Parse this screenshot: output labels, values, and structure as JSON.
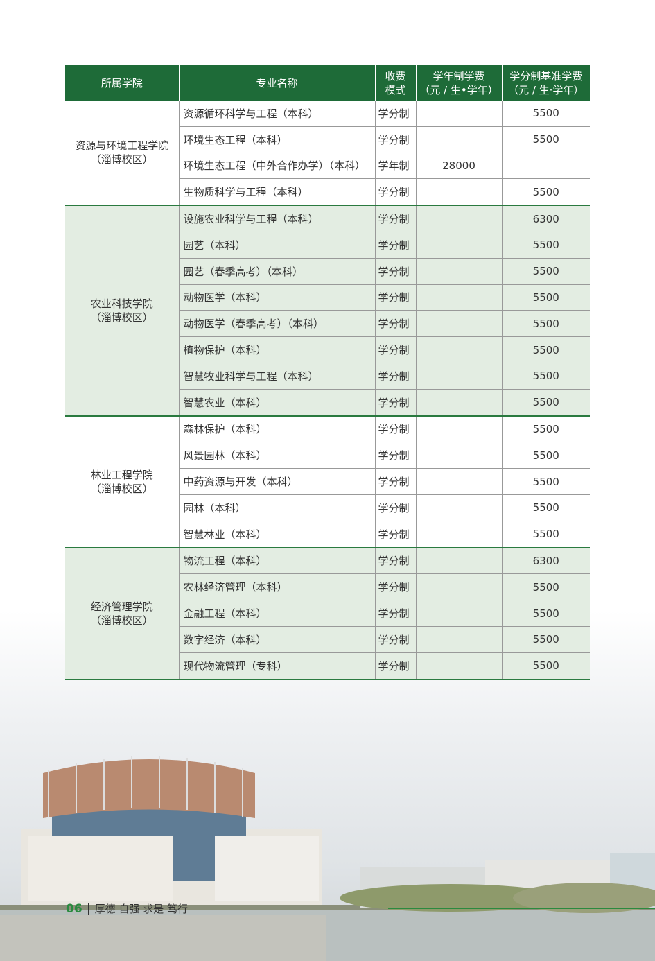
{
  "table": {
    "headers": [
      "所属学院",
      "专业名称",
      "收费\n模式",
      "学年制学费\n（元 / 生•学年）",
      "学分制基准学费\n（元 / 生·学年）"
    ],
    "groups": [
      {
        "college": "资源与环境工程学院\n（淄博校区）",
        "rows": [
          [
            "资源循环科学与工程（本科）",
            "学分制",
            "",
            "5500"
          ],
          [
            "环境生态工程（本科）",
            "学分制",
            "",
            "5500"
          ],
          [
            "环境生态工程（中外合作办学）（本科）",
            "学年制",
            "28000",
            ""
          ],
          [
            "生物质科学与工程（本科）",
            "学分制",
            "",
            "5500"
          ]
        ]
      },
      {
        "college": "农业科技学院\n（淄博校区）",
        "rows": [
          [
            "设施农业科学与工程（本科）",
            "学分制",
            "",
            "6300"
          ],
          [
            "园艺（本科）",
            "学分制",
            "",
            "5500"
          ],
          [
            "园艺（春季高考）（本科）",
            "学分制",
            "",
            "5500"
          ],
          [
            "动物医学（本科）",
            "学分制",
            "",
            "5500"
          ],
          [
            "动物医学（春季高考）（本科）",
            "学分制",
            "",
            "5500"
          ],
          [
            "植物保护（本科）",
            "学分制",
            "",
            "5500"
          ],
          [
            "智慧牧业科学与工程（本科）",
            "学分制",
            "",
            "5500"
          ],
          [
            "智慧农业（本科）",
            "学分制",
            "",
            "5500"
          ]
        ]
      },
      {
        "college": "林业工程学院\n（淄博校区）",
        "rows": [
          [
            "森林保护（本科）",
            "学分制",
            "",
            "5500"
          ],
          [
            "风景园林（本科）",
            "学分制",
            "",
            "5500"
          ],
          [
            "中药资源与开发（本科）",
            "学分制",
            "",
            "5500"
          ],
          [
            "园林（本科）",
            "学分制",
            "",
            "5500"
          ],
          [
            "智慧林业（本科）",
            "学分制",
            "",
            "5500"
          ]
        ]
      },
      {
        "college": "经济管理学院\n（淄博校区）",
        "rows": [
          [
            "物流工程（本科）",
            "学分制",
            "",
            "6300"
          ],
          [
            "农林经济管理（本科）",
            "学分制",
            "",
            "5500"
          ],
          [
            "金融工程（本科）",
            "学分制",
            "",
            "5500"
          ],
          [
            "数字经济（本科）",
            "学分制",
            "",
            "5500"
          ],
          [
            "现代物流管理（专科）",
            "学分制",
            "",
            "5500"
          ]
        ]
      }
    ]
  },
  "footer": {
    "page_number": "06",
    "motto": "厚德 自强 求是 笃行"
  },
  "colors": {
    "header_green": "#1e6b38",
    "row_tint": "#e3ede2"
  }
}
